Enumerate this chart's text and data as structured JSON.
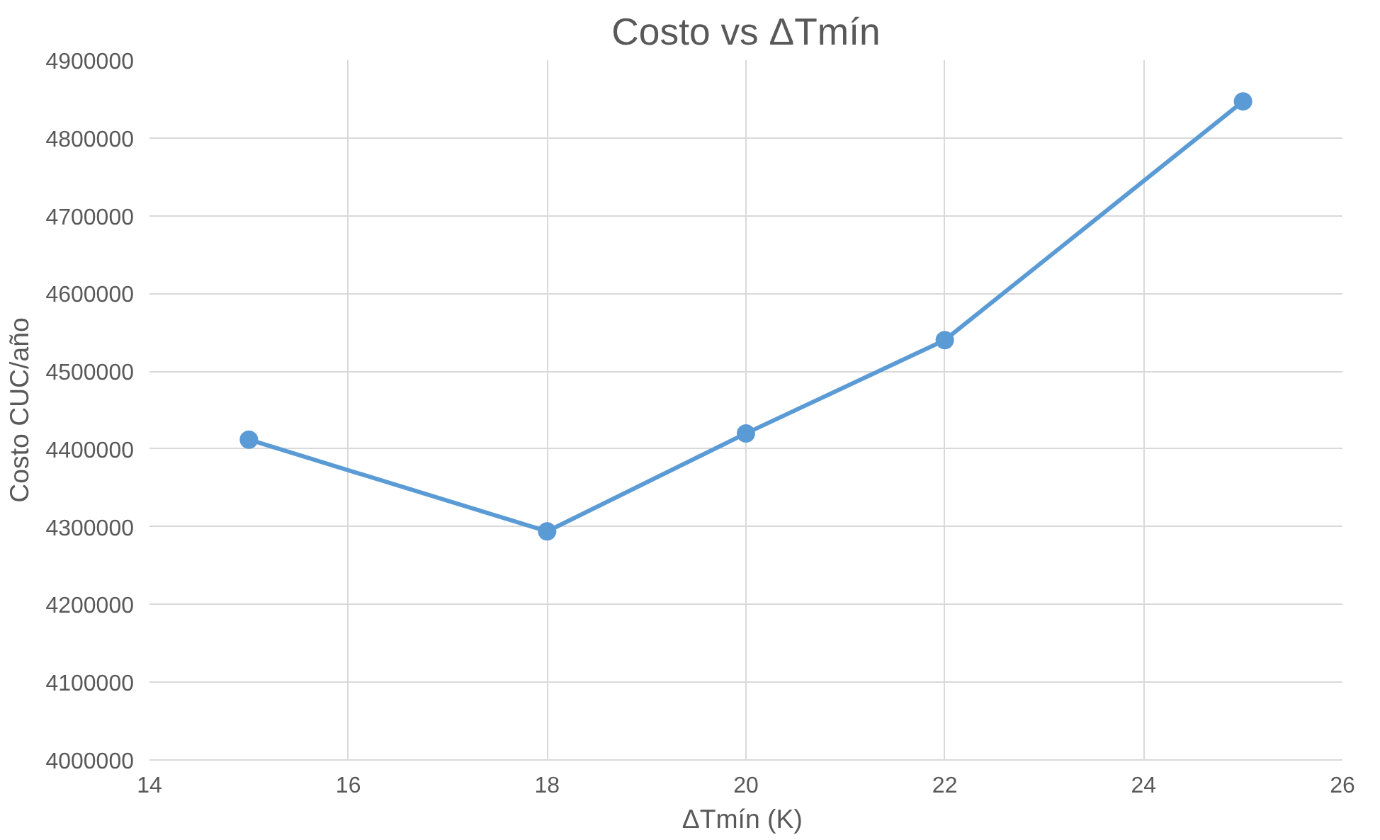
{
  "chart_data": {
    "type": "line",
    "title": "Costo vs ΔTmín",
    "xlabel": "ΔTmín  (K)",
    "ylabel": "Costo CUC/año",
    "x": [
      15,
      18,
      20,
      22,
      25
    ],
    "series": [
      {
        "color": "#5b9bd5",
        "values": [
          4412000,
          4294000,
          4420000,
          4540000,
          4847000
        ]
      }
    ],
    "xlim": [
      14,
      26
    ],
    "xticks": [
      14,
      16,
      18,
      20,
      22,
      24,
      26
    ],
    "ylim": [
      4000000,
      4900000
    ],
    "yticks": [
      4000000,
      4100000,
      4200000,
      4300000,
      4400000,
      4500000,
      4600000,
      4700000,
      4800000,
      4900000
    ],
    "grid": true,
    "marker": "circle",
    "line_style": "solid"
  }
}
